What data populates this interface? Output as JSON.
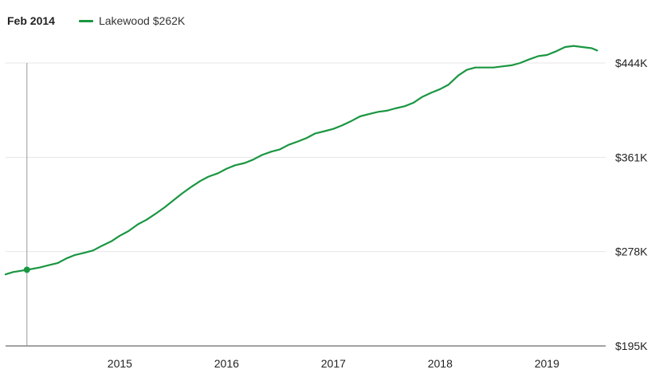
{
  "header": {
    "hover_date": "Feb 2014",
    "legend_name": "Lakewood",
    "legend_value": "$262K"
  },
  "colors": {
    "series": "#1a9641",
    "grid": "#e6e6e6",
    "axis": "#444444",
    "crosshair": "#999999"
  },
  "chart_data": {
    "type": "line",
    "title": "",
    "xlabel": "",
    "ylabel": "",
    "x_range": [
      2013.93,
      2019.55
    ],
    "ylim": [
      195,
      444
    ],
    "y_ticks": [
      {
        "value": 444,
        "label": "$444K"
      },
      {
        "value": 361,
        "label": "$361K"
      },
      {
        "value": 278,
        "label": "$278K"
      },
      {
        "value": 195,
        "label": "$195K"
      }
    ],
    "x_ticks": [
      {
        "value": 2015,
        "label": "2015"
      },
      {
        "value": 2016,
        "label": "2016"
      },
      {
        "value": 2017,
        "label": "2017"
      },
      {
        "value": 2018,
        "label": "2018"
      },
      {
        "value": 2019,
        "label": "2019"
      }
    ],
    "grid": true,
    "legend_position": "top-left",
    "crosshair": {
      "x": 2014.13,
      "y": 262
    },
    "series": [
      {
        "name": "Lakewood",
        "points": [
          [
            2013.93,
            258
          ],
          [
            2014.0,
            260
          ],
          [
            2014.13,
            262
          ],
          [
            2014.25,
            264
          ],
          [
            2014.33,
            266
          ],
          [
            2014.42,
            268
          ],
          [
            2014.5,
            272
          ],
          [
            2014.58,
            275
          ],
          [
            2014.67,
            277
          ],
          [
            2014.75,
            279
          ],
          [
            2014.83,
            283
          ],
          [
            2014.92,
            287
          ],
          [
            2015.0,
            292
          ],
          [
            2015.08,
            296
          ],
          [
            2015.17,
            302
          ],
          [
            2015.25,
            306
          ],
          [
            2015.33,
            311
          ],
          [
            2015.42,
            317
          ],
          [
            2015.5,
            323
          ],
          [
            2015.58,
            329
          ],
          [
            2015.67,
            335
          ],
          [
            2015.75,
            340
          ],
          [
            2015.83,
            344
          ],
          [
            2015.92,
            347
          ],
          [
            2016.0,
            351
          ],
          [
            2016.08,
            354
          ],
          [
            2016.17,
            356
          ],
          [
            2016.25,
            359
          ],
          [
            2016.33,
            363
          ],
          [
            2016.42,
            366
          ],
          [
            2016.5,
            368
          ],
          [
            2016.58,
            372
          ],
          [
            2016.67,
            375
          ],
          [
            2016.75,
            378
          ],
          [
            2016.83,
            382
          ],
          [
            2016.92,
            384
          ],
          [
            2017.0,
            386
          ],
          [
            2017.08,
            389
          ],
          [
            2017.17,
            393
          ],
          [
            2017.25,
            397
          ],
          [
            2017.33,
            399
          ],
          [
            2017.42,
            401
          ],
          [
            2017.5,
            402
          ],
          [
            2017.58,
            404
          ],
          [
            2017.67,
            406
          ],
          [
            2017.75,
            409
          ],
          [
            2017.83,
            414
          ],
          [
            2017.92,
            418
          ],
          [
            2018.0,
            421
          ],
          [
            2018.08,
            425
          ],
          [
            2018.17,
            433
          ],
          [
            2018.25,
            438
          ],
          [
            2018.33,
            440
          ],
          [
            2018.42,
            440
          ],
          [
            2018.5,
            440
          ],
          [
            2018.58,
            441
          ],
          [
            2018.67,
            442
          ],
          [
            2018.75,
            444
          ],
          [
            2018.83,
            447
          ],
          [
            2018.92,
            450
          ],
          [
            2019.0,
            451
          ],
          [
            2019.08,
            454
          ],
          [
            2019.17,
            458
          ],
          [
            2019.25,
            459
          ],
          [
            2019.33,
            458
          ],
          [
            2019.42,
            457
          ],
          [
            2019.47,
            455
          ]
        ]
      }
    ]
  }
}
